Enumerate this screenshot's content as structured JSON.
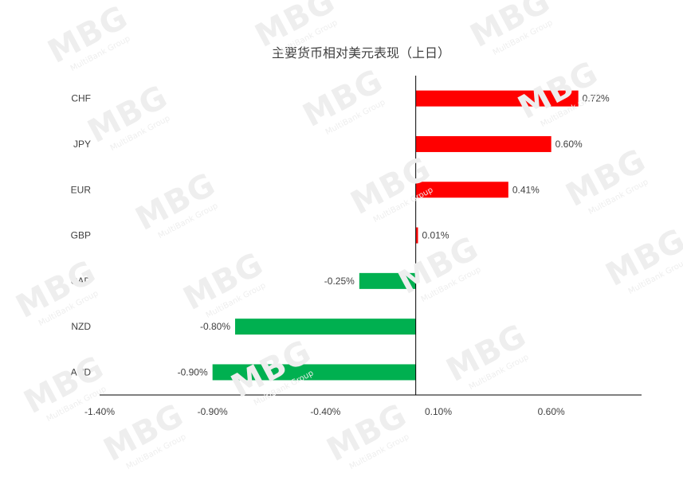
{
  "watermark": {
    "logo_text": "MBG",
    "sub_text": "MultiBank Group"
  },
  "chart_data": {
    "type": "bar",
    "orientation": "horizontal",
    "title": "主要货币相对美元表现（上日）",
    "categories": [
      "CHF",
      "JPY",
      "EUR",
      "GBP",
      "CAD",
      "NZD",
      "AUD"
    ],
    "values": [
      0.72,
      0.6,
      0.41,
      0.01,
      -0.25,
      -0.8,
      -0.9
    ],
    "value_labels": [
      "0.72%",
      "0.60%",
      "0.41%",
      "0.01%",
      "-0.25%",
      "-0.80%",
      "-0.90%"
    ],
    "xlim": [
      -1.4,
      1.0
    ],
    "x_tick_values": [
      -1.4,
      -0.9,
      -0.4,
      0.1,
      0.6
    ],
    "x_tick_labels": [
      "-1.40%",
      "-0.90%",
      "-0.40%",
      "0.10%",
      "0.60%"
    ],
    "colors": {
      "positive": "#ff0000",
      "negative": "#00b050",
      "axis": "#000000",
      "text": "#404040"
    },
    "grid": false,
    "legend": "none"
  }
}
